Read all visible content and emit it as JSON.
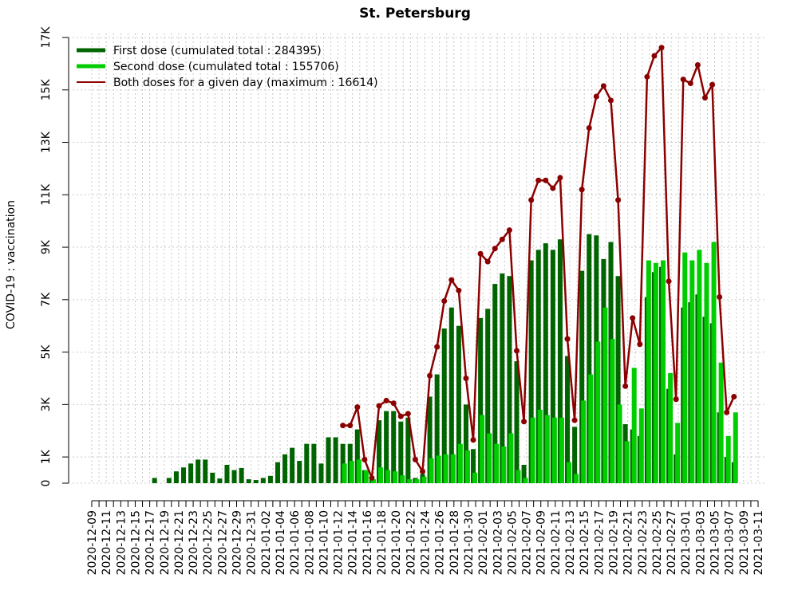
{
  "chart_data": {
    "type": "bar+line",
    "title": "St. Petersburg",
    "y_label": "COVID-19 : vaccination",
    "categories": [
      "2020-12-09",
      null,
      "2020-12-11",
      null,
      "2020-12-13",
      null,
      "2020-12-15",
      null,
      "2020-12-17",
      null,
      "2020-12-19",
      null,
      "2020-12-21",
      null,
      "2020-12-23",
      null,
      "2020-12-25",
      null,
      "2020-12-27",
      null,
      "2020-12-29",
      null,
      "2020-12-31",
      null,
      "2021-01-02",
      null,
      "2021-01-04",
      null,
      "2021-01-06",
      null,
      "2021-01-08",
      null,
      "2021-01-10",
      null,
      "2021-01-12",
      null,
      "2021-01-14",
      null,
      "2021-01-16",
      null,
      "2021-01-18",
      null,
      "2021-01-20",
      null,
      "2021-01-22",
      null,
      "2021-01-24",
      null,
      "2021-01-26",
      null,
      "2021-01-28",
      null,
      "2021-01-30",
      null,
      "2021-02-01",
      null,
      "2021-02-03",
      null,
      "2021-02-05",
      null,
      "2021-02-07",
      null,
      "2021-02-09",
      null,
      "2021-02-11",
      null,
      "2021-02-13",
      null,
      "2021-02-15",
      null,
      "2021-02-17",
      null,
      "2021-02-19",
      null,
      "2021-02-21",
      null,
      "2021-02-23",
      null,
      "2021-02-25",
      null,
      "2021-02-27",
      null,
      "2021-03-01",
      null,
      "2021-03-03",
      null,
      "2021-03-05",
      null,
      "2021-03-07",
      null,
      "2021-03-09",
      null,
      "2021-03-11"
    ],
    "series": [
      {
        "name": "First dose (cumulated total : 284395)",
        "color": "#006400",
        "kind": "bar",
        "values": [
          null,
          null,
          null,
          null,
          null,
          null,
          null,
          null,
          null,
          200,
          null,
          200,
          450,
          600,
          750,
          900,
          900,
          400,
          180,
          700,
          500,
          580,
          150,
          120,
          200,
          280,
          800,
          1100,
          1350,
          850,
          1500,
          1500,
          750,
          1750,
          1750,
          1500,
          1500,
          2050,
          500,
          200,
          2400,
          2750,
          2750,
          2350,
          2500,
          200,
          350,
          3300,
          4150,
          5900,
          6700,
          6000,
          3000,
          1300,
          6300,
          6650,
          7600,
          8000,
          7900,
          4650,
          700,
          8500,
          8900,
          9150,
          8900,
          9300,
          4850,
          2150,
          8100,
          9500,
          9450,
          8550,
          9200,
          7900,
          2250,
          2050,
          1800,
          7100,
          8050,
          8250,
          3600,
          1100,
          6700,
          6900,
          7200,
          6350,
          6100,
          2700,
          1000,
          800,
          null,
          null,
          null
        ]
      },
      {
        "name": "Second dose (cumulated total : 155706)",
        "color": "#00cd00",
        "kind": "bar",
        "values": [
          null,
          null,
          null,
          null,
          null,
          null,
          null,
          null,
          null,
          null,
          null,
          null,
          null,
          null,
          null,
          null,
          null,
          null,
          null,
          null,
          null,
          null,
          null,
          null,
          null,
          null,
          null,
          null,
          null,
          null,
          null,
          null,
          null,
          null,
          null,
          750,
          850,
          900,
          500,
          150,
          600,
          500,
          450,
          300,
          150,
          150,
          250,
          950,
          1050,
          1100,
          1100,
          1500,
          1250,
          400,
          2600,
          1900,
          1500,
          1400,
          1900,
          500,
          200,
          2500,
          2800,
          2600,
          2500,
          2500,
          800,
          350,
          3150,
          4150,
          5400,
          6700,
          5500,
          3000,
          1600,
          4400,
          2850,
          8500,
          8400,
          8500,
          4200,
          2300,
          8800,
          8500,
          8900,
          8400,
          9200,
          4600,
          1800,
          2700,
          null,
          null,
          null
        ]
      },
      {
        "name": "Both doses for a given day (maximum : 16614)",
        "color": "#8b0000",
        "kind": "line",
        "values": [
          null,
          null,
          null,
          null,
          null,
          null,
          null,
          null,
          null,
          null,
          null,
          null,
          null,
          null,
          null,
          null,
          null,
          null,
          null,
          null,
          null,
          null,
          null,
          null,
          null,
          null,
          null,
          null,
          null,
          null,
          null,
          null,
          null,
          null,
          null,
          2200,
          2200,
          2900,
          900,
          200,
          2950,
          3150,
          3050,
          2550,
          2650,
          900,
          450,
          4100,
          5200,
          6950,
          7750,
          7350,
          4000,
          1650,
          8750,
          8450,
          8950,
          9300,
          9650,
          5050,
          2350,
          10800,
          11550,
          11550,
          11250,
          11650,
          5500,
          2400,
          11200,
          13550,
          14750,
          15150,
          14600,
          10800,
          3700,
          6300,
          5300,
          15500,
          16300,
          16614,
          7700,
          3200,
          15400,
          15250,
          15950,
          14700,
          15200,
          7100,
          2700,
          3300,
          null,
          null,
          null
        ]
      }
    ],
    "ylim": [
      0,
      17000
    ],
    "yticks": [
      0,
      {
        "value": 1000,
        "label": "1K"
      },
      {
        "value": 3000,
        "label": "3K"
      },
      {
        "value": 5000,
        "label": "5K"
      },
      {
        "value": 7000,
        "label": "7K"
      },
      {
        "value": 9000,
        "label": "9K"
      },
      {
        "value": 11000,
        "label": "11K"
      },
      {
        "value": 13000,
        "label": "13K"
      },
      {
        "value": 15000,
        "label": "15K"
      },
      {
        "value": 17000,
        "label": "17K"
      }
    ],
    "grid": true,
    "legend": "top-left"
  }
}
